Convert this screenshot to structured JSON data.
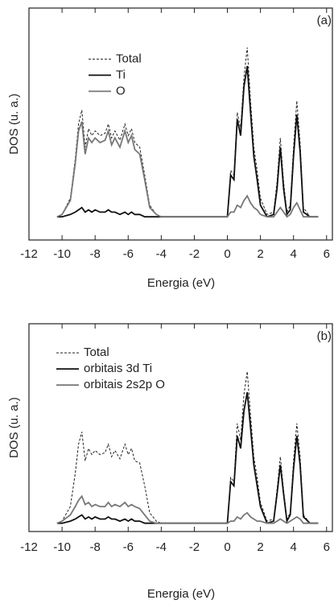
{
  "chart_data": [
    {
      "type": "line",
      "panel_label": "(a)",
      "xlabel": "Energia (eV)",
      "ylabel": "DOS (u. a.)",
      "xlim": [
        -12,
        6.4
      ],
      "ylim": [
        0,
        100
      ],
      "xticks": [
        -12,
        -10,
        -8,
        -6,
        -4,
        -2,
        0,
        2,
        4,
        6
      ],
      "legend_loc": "upper center",
      "x": [
        -10.3,
        -10,
        -9.5,
        -9.2,
        -9,
        -8.8,
        -8.6,
        -8.4,
        -8.2,
        -8,
        -7.7,
        -7.4,
        -7.2,
        -7,
        -6.8,
        -6.5,
        -6.2,
        -6,
        -5.8,
        -5.6,
        -5.3,
        -5,
        -4.7,
        -4.3,
        -4,
        -3,
        -1,
        0,
        0.2,
        0.4,
        0.6,
        0.8,
        1.0,
        1.2,
        1.4,
        1.6,
        1.8,
        2.0,
        2.4,
        2.8,
        3.0,
        3.2,
        3.4,
        3.6,
        3.8,
        4.0,
        4.2,
        4.4,
        4.6,
        5.0,
        5.5
      ],
      "series": [
        {
          "name": "Total",
          "color": "#222222",
          "dashed": true,
          "values": [
            10,
            11,
            18,
            35,
            50,
            56,
            40,
            48,
            45,
            47,
            45,
            46,
            50,
            44,
            47,
            43,
            50,
            45,
            48,
            42,
            40,
            28,
            15,
            11,
            10,
            10,
            10,
            10,
            30,
            28,
            55,
            48,
            70,
            83,
            60,
            40,
            30,
            18,
            11,
            12,
            25,
            44,
            25,
            12,
            15,
            40,
            60,
            42,
            14,
            10,
            10
          ]
        },
        {
          "name": "Ti",
          "color": "#111111",
          "dashed": false,
          "values": [
            10,
            10,
            11,
            12,
            13,
            14,
            12,
            13,
            12,
            13,
            12,
            12,
            13,
            12,
            12,
            11,
            12,
            11,
            12,
            11,
            11,
            10,
            10,
            10,
            10,
            10,
            10,
            10,
            28,
            26,
            52,
            45,
            66,
            75,
            55,
            36,
            26,
            15,
            10,
            11,
            22,
            40,
            22,
            11,
            13,
            36,
            54,
            38,
            12,
            10,
            10
          ]
        },
        {
          "name": "O",
          "color": "#777777",
          "dashed": false,
          "values": [
            10,
            11,
            17,
            33,
            47,
            51,
            37,
            44,
            42,
            44,
            42,
            43,
            47,
            41,
            44,
            40,
            47,
            42,
            45,
            39,
            37,
            26,
            14,
            11,
            10,
            10,
            10,
            10,
            12,
            12,
            15,
            14,
            17,
            19,
            16,
            14,
            13,
            11,
            10,
            10,
            12,
            14,
            12,
            10,
            11,
            14,
            16,
            13,
            10,
            10,
            10
          ]
        }
      ]
    },
    {
      "type": "line",
      "panel_label": "(b)",
      "xlabel": "Energia (eV)",
      "ylabel": "DOS (u. a.)",
      "xlim": [
        -12,
        6.4
      ],
      "ylim": [
        0,
        100
      ],
      "xticks": [
        -12,
        -10,
        -8,
        -6,
        -4,
        -2,
        0,
        2,
        4,
        6
      ],
      "legend_loc": "upper left",
      "x": [
        -10.3,
        -10,
        -9.5,
        -9.2,
        -9,
        -8.8,
        -8.6,
        -8.4,
        -8.2,
        -8,
        -7.7,
        -7.4,
        -7.2,
        -7,
        -6.8,
        -6.5,
        -6.2,
        -6,
        -5.8,
        -5.6,
        -5.3,
        -5,
        -4.7,
        -4.3,
        -4,
        -3,
        -1,
        0,
        0.2,
        0.4,
        0.6,
        0.8,
        1.0,
        1.2,
        1.4,
        1.6,
        1.8,
        2.0,
        2.4,
        2.8,
        3.0,
        3.2,
        3.4,
        3.6,
        3.8,
        4.0,
        4.2,
        4.4,
        4.6,
        5.0,
        5.5
      ],
      "series": [
        {
          "name": "Total",
          "color": "#222222",
          "dashed": true,
          "values": [
            4,
            5,
            12,
            28,
            42,
            48,
            34,
            40,
            37,
            39,
            37,
            38,
            42,
            36,
            39,
            35,
            42,
            37,
            40,
            34,
            33,
            22,
            9,
            5,
            4,
            4,
            4,
            4,
            26,
            24,
            52,
            44,
            66,
            77,
            56,
            36,
            26,
            14,
            5,
            6,
            20,
            36,
            20,
            6,
            9,
            34,
            52,
            36,
            8,
            4,
            4
          ]
        },
        {
          "name": "orbitais 3d Ti",
          "color": "#111111",
          "dashed": false,
          "values": [
            4,
            4,
            5,
            6,
            7,
            8,
            6,
            7,
            6,
            7,
            6,
            6,
            7,
            6,
            6,
            5,
            6,
            5,
            6,
            5,
            5,
            4,
            4,
            4,
            4,
            4,
            4,
            4,
            24,
            22,
            46,
            40,
            58,
            67,
            50,
            32,
            22,
            12,
            4,
            5,
            18,
            32,
            18,
            5,
            8,
            30,
            46,
            32,
            7,
            4,
            4
          ]
        },
        {
          "name": "orbitais 2s2p O",
          "color": "#777777",
          "dashed": false,
          "values": [
            4,
            5,
            8,
            12,
            15,
            17,
            13,
            14,
            12,
            13,
            12,
            12,
            14,
            12,
            13,
            12,
            14,
            12,
            13,
            12,
            11,
            8,
            5,
            4,
            4,
            4,
            4,
            4,
            5,
            5,
            7,
            6,
            8,
            9,
            7,
            6,
            5,
            5,
            4,
            4,
            5,
            6,
            5,
            4,
            5,
            6,
            7,
            6,
            4,
            4,
            4
          ]
        }
      ]
    }
  ]
}
